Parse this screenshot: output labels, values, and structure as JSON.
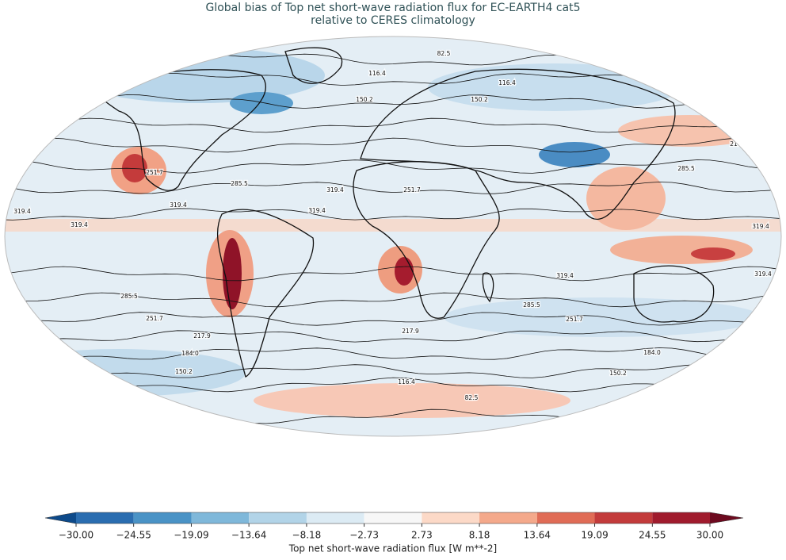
{
  "title": "Global bias of Top net short-wave radiation flux for EC-EARTH4 cat5",
  "subtitle": "relative to CERES climatology",
  "contour_levels": [
    {
      "value": 82.5,
      "label": "82.5"
    },
    {
      "value": 116.4,
      "label": "116.4"
    },
    {
      "value": 150.2,
      "label": "150.2"
    },
    {
      "value": 184,
      "label": "184.0"
    },
    {
      "value": 217.9,
      "label": "217.9"
    },
    {
      "value": 251.7,
      "label": "251.7"
    },
    {
      "value": 285.5,
      "label": "285.5"
    },
    {
      "value": 319.4,
      "label": "319.4"
    }
  ],
  "colorbar": {
    "label": "Top net short-wave radiation flux [W m**-2]",
    "ticks": [
      {
        "value": -30,
        "label": "−30.00"
      },
      {
        "value": -24.55,
        "label": "−24.55"
      },
      {
        "value": -19.09,
        "label": "−19.09"
      },
      {
        "value": -13.64,
        "label": "−13.64"
      },
      {
        "value": -8.18,
        "label": "−8.18"
      },
      {
        "value": -2.73,
        "label": "−2.73"
      },
      {
        "value": 2.73,
        "label": "2.73"
      },
      {
        "value": 8.18,
        "label": "8.18"
      },
      {
        "value": 13.64,
        "label": "13.64"
      },
      {
        "value": 19.09,
        "label": "19.09"
      },
      {
        "value": 24.55,
        "label": "24.55"
      },
      {
        "value": 30,
        "label": "30.00"
      }
    ],
    "colors": [
      "#2a6db0",
      "#4a93c6",
      "#7fb8da",
      "#b2d4e8",
      "#dcebf4",
      "#f7f7f7",
      "#fcd9c7",
      "#f4a98b",
      "#e06c56",
      "#c33b3b",
      "#a01b2d"
    ],
    "under_color": "#0d4a8a",
    "over_color": "#6d0a1f"
  }
}
